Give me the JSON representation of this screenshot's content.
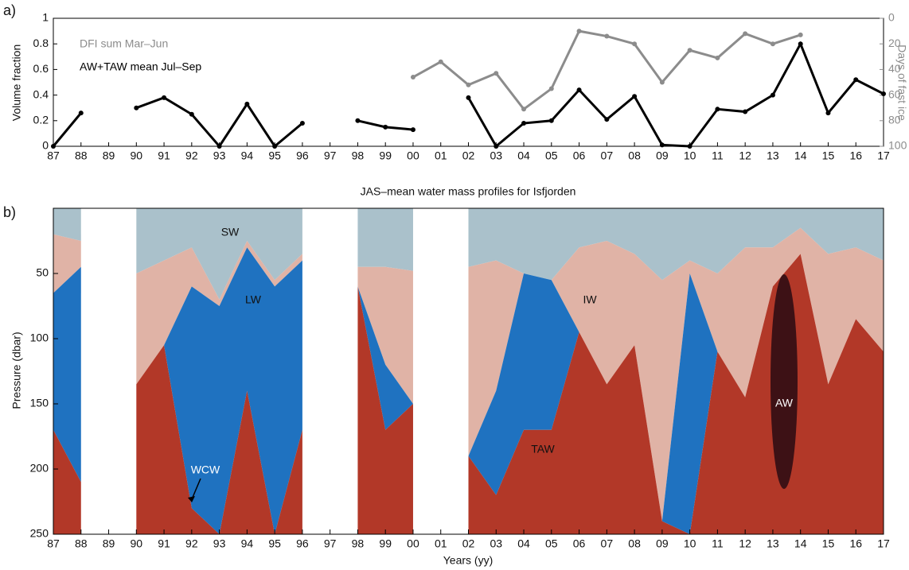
{
  "chart_data": [
    {
      "type": "line",
      "panel_label": "a)",
      "ylabel": "Volume fraction",
      "y2label": "Days of fast ice",
      "x": [
        1987,
        1988,
        1989,
        1990,
        1991,
        1992,
        1993,
        1994,
        1995,
        1996,
        1997,
        1998,
        1999,
        2000,
        2001,
        2002,
        2003,
        2004,
        2005,
        2006,
        2007,
        2008,
        2009,
        2010,
        2011,
        2012,
        2013,
        2014,
        2015,
        2016,
        2017
      ],
      "xlim": [
        1987,
        2017
      ],
      "xticks": [
        {
          "value": 1987,
          "label": "87"
        },
        {
          "value": 1988,
          "label": "88"
        },
        {
          "value": 1989,
          "label": "89"
        },
        {
          "value": 1990,
          "label": "90"
        },
        {
          "value": 1991,
          "label": "91"
        },
        {
          "value": 1992,
          "label": "92"
        },
        {
          "value": 1993,
          "label": "93"
        },
        {
          "value": 1994,
          "label": "94"
        },
        {
          "value": 1995,
          "label": "95"
        },
        {
          "value": 1996,
          "label": "96"
        },
        {
          "value": 1997,
          "label": "97"
        },
        {
          "value": 1998,
          "label": "98"
        },
        {
          "value": 1999,
          "label": "99"
        },
        {
          "value": 2000,
          "label": "00"
        },
        {
          "value": 2001,
          "label": "01"
        },
        {
          "value": 2002,
          "label": "02"
        },
        {
          "value": 2003,
          "label": "03"
        },
        {
          "value": 2004,
          "label": "04"
        },
        {
          "value": 2005,
          "label": "05"
        },
        {
          "value": 2006,
          "label": "06"
        },
        {
          "value": 2007,
          "label": "07"
        },
        {
          "value": 2008,
          "label": "08"
        },
        {
          "value": 2009,
          "label": "09"
        },
        {
          "value": 2010,
          "label": "10"
        },
        {
          "value": 2011,
          "label": "11"
        },
        {
          "value": 2012,
          "label": "12"
        },
        {
          "value": 2013,
          "label": "13"
        },
        {
          "value": 2014,
          "label": "14"
        },
        {
          "value": 2015,
          "label": "15"
        },
        {
          "value": 2016,
          "label": "16"
        },
        {
          "value": 2017,
          "label": "17"
        }
      ],
      "ylim": [
        0,
        1
      ],
      "yticks": [
        0,
        0.2,
        0.4,
        0.6,
        0.8,
        1
      ],
      "y2lim": [
        100,
        0
      ],
      "y2ticks": [
        0,
        20,
        40,
        60,
        80,
        100
      ],
      "series": [
        {
          "name": "DFI sum Mar–Jun",
          "color": "#8c8c8c",
          "axis": "y2",
          "values": [
            null,
            null,
            null,
            null,
            null,
            null,
            null,
            null,
            null,
            null,
            null,
            null,
            null,
            46,
            34,
            52,
            43,
            71,
            55,
            10,
            14,
            20,
            50,
            25,
            31,
            12,
            20,
            13,
            null,
            null,
            null
          ]
        },
        {
          "name": "AW+TAW mean Jul–Sep",
          "color": "#000000",
          "values": [
            0,
            0.26,
            null,
            0.3,
            0.38,
            0.25,
            0,
            0.33,
            0,
            0.18,
            null,
            0.2,
            0.15,
            0.13,
            null,
            0.38,
            0,
            0.18,
            0.2,
            0.44,
            0.21,
            0.39,
            0.01,
            0,
            0.29,
            0.27,
            0.4,
            0.8,
            0.26,
            0.52,
            0.41
          ]
        }
      ]
    },
    {
      "type": "layers",
      "panel_label": "b)",
      "title": "JAS–mean water mass profiles for Isfjorden",
      "xlabel": "Years (yy)",
      "ylabel": "Pressure (dbar)",
      "x": [
        1987,
        1988,
        1989,
        1990,
        1991,
        1992,
        1993,
        1994,
        1995,
        1996,
        1997,
        1998,
        1999,
        2000,
        2001,
        2002,
        2003,
        2004,
        2005,
        2006,
        2007,
        2008,
        2009,
        2010,
        2011,
        2012,
        2013,
        2014,
        2015,
        2016,
        2017
      ],
      "xlim": [
        1987,
        2017
      ],
      "xticks": [
        {
          "value": 1987,
          "label": "87"
        },
        {
          "value": 1988,
          "label": "88"
        },
        {
          "value": 1989,
          "label": "89"
        },
        {
          "value": 1990,
          "label": "90"
        },
        {
          "value": 1991,
          "label": "91"
        },
        {
          "value": 1992,
          "label": "92"
        },
        {
          "value": 1993,
          "label": "93"
        },
        {
          "value": 1994,
          "label": "94"
        },
        {
          "value": 1995,
          "label": "95"
        },
        {
          "value": 1996,
          "label": "96"
        },
        {
          "value": 1997,
          "label": "97"
        },
        {
          "value": 1998,
          "label": "98"
        },
        {
          "value": 1999,
          "label": "99"
        },
        {
          "value": 2000,
          "label": "00"
        },
        {
          "value": 2001,
          "label": "01"
        },
        {
          "value": 2002,
          "label": "02"
        },
        {
          "value": 2003,
          "label": "03"
        },
        {
          "value": 2004,
          "label": "04"
        },
        {
          "value": 2005,
          "label": "05"
        },
        {
          "value": 2006,
          "label": "06"
        },
        {
          "value": 2007,
          "label": "07"
        },
        {
          "value": 2008,
          "label": "08"
        },
        {
          "value": 2009,
          "label": "09"
        },
        {
          "value": 2010,
          "label": "10"
        },
        {
          "value": 2011,
          "label": "11"
        },
        {
          "value": 2012,
          "label": "12"
        },
        {
          "value": 2013,
          "label": "13"
        },
        {
          "value": 2014,
          "label": "14"
        },
        {
          "value": 2015,
          "label": "15"
        },
        {
          "value": 2016,
          "label": "16"
        },
        {
          "value": 2017,
          "label": "17"
        }
      ],
      "ylim": [
        250,
        0
      ],
      "yticks": [
        50,
        100,
        150,
        200,
        250
      ],
      "series": [
        {
          "name": "SW",
          "color": "#aac1cb",
          "values": [
            20,
            25,
            null,
            50,
            40,
            30,
            70,
            25,
            55,
            35,
            null,
            45,
            45,
            48,
            null,
            45,
            40,
            50,
            55,
            30,
            25,
            35,
            55,
            40,
            50,
            30,
            30,
            15,
            35,
            30,
            40
          ]
        },
        {
          "name": "IW",
          "color": "#e0b3a6",
          "values": [
            65,
            45,
            null,
            135,
            105,
            60,
            75,
            30,
            60,
            40,
            null,
            60,
            120,
            150,
            null,
            190,
            140,
            50,
            55,
            95,
            135,
            105,
            240,
            50,
            110,
            145,
            60,
            35,
            135,
            85,
            110
          ]
        },
        {
          "name": "LW",
          "color": "#1f72c0",
          "values": [
            170,
            210,
            null,
            135,
            105,
            230,
            250,
            140,
            250,
            170,
            null,
            60,
            170,
            150,
            null,
            190,
            220,
            170,
            170,
            95,
            135,
            105,
            240,
            250,
            110,
            145,
            60,
            35,
            135,
            85,
            110
          ]
        },
        {
          "name": "TAW",
          "color": "#b23828",
          "values": [
            250,
            250,
            null,
            250,
            250,
            250,
            250,
            250,
            250,
            250,
            null,
            250,
            250,
            250,
            null,
            250,
            250,
            250,
            250,
            250,
            250,
            250,
            250,
            250,
            250,
            250,
            250,
            250,
            250,
            250,
            250
          ]
        }
      ],
      "annotations": [
        "AW",
        "WCW"
      ]
    }
  ]
}
